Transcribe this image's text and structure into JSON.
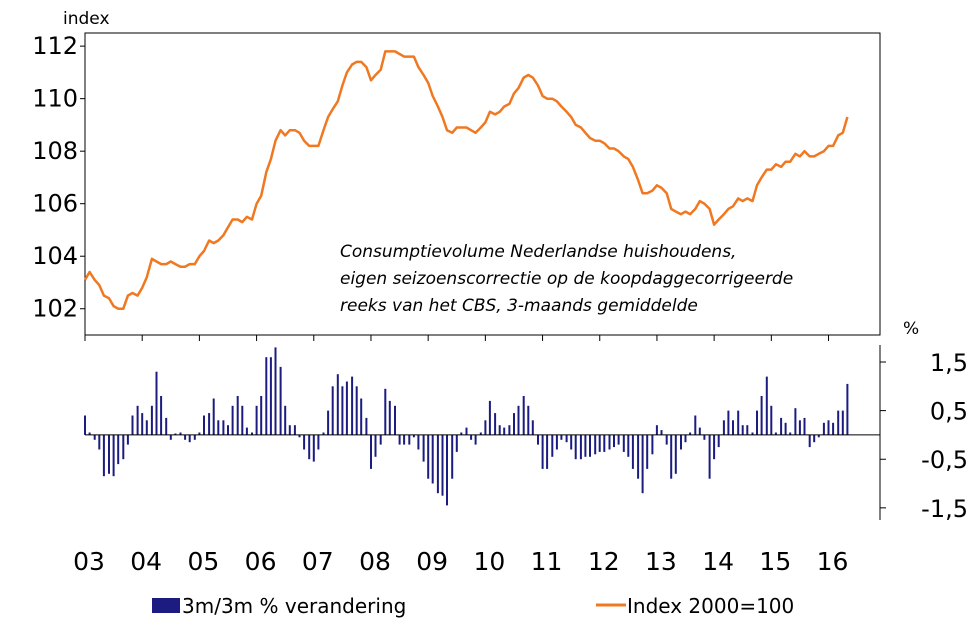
{
  "chart_data": {
    "type": "bar+line",
    "annotation": [
      "Consumptievolume Nederlandse huishoudens,",
      "eigen seizoenscorrectie op de koopdaggecorrigeerde",
      "reeks van het CBS, 3-maands gemiddelde"
    ],
    "top_panel": {
      "ylabel": "index",
      "ylim": [
        101,
        112.5
      ],
      "yticks": [
        "112",
        "110",
        "108",
        "106",
        "104",
        "102"
      ]
    },
    "bottom_panel": {
      "ylabel": "%",
      "ylim": [
        -1.75,
        1.85
      ],
      "yticks": [
        "1,5",
        "0,5",
        "-0,5",
        "-1,5"
      ]
    },
    "x_years": [
      "03",
      "04",
      "05",
      "06",
      "07",
      "08",
      "09",
      "10",
      "11",
      "12",
      "13",
      "14",
      "15",
      "16"
    ],
    "x_range": [
      2003.0,
      2016.9
    ],
    "line_series": {
      "name": "Index 2000=100",
      "color": "#f07820",
      "points": [
        [
          2003.0,
          103.1
        ],
        [
          2003.08,
          103.4
        ],
        [
          2003.17,
          103.1
        ],
        [
          2003.25,
          102.9
        ],
        [
          2003.33,
          102.5
        ],
        [
          2003.42,
          102.4
        ],
        [
          2003.5,
          102.1
        ],
        [
          2003.58,
          102.0
        ],
        [
          2003.67,
          102.0
        ],
        [
          2003.75,
          102.5
        ],
        [
          2003.83,
          102.6
        ],
        [
          2003.92,
          102.5
        ],
        [
          2004.0,
          102.8
        ],
        [
          2004.08,
          103.2
        ],
        [
          2004.17,
          103.9
        ],
        [
          2004.25,
          103.8
        ],
        [
          2004.33,
          103.7
        ],
        [
          2004.42,
          103.7
        ],
        [
          2004.5,
          103.8
        ],
        [
          2004.58,
          103.7
        ],
        [
          2004.67,
          103.6
        ],
        [
          2004.75,
          103.6
        ],
        [
          2004.83,
          103.7
        ],
        [
          2004.92,
          103.7
        ],
        [
          2005.0,
          104.0
        ],
        [
          2005.08,
          104.2
        ],
        [
          2005.17,
          104.6
        ],
        [
          2005.25,
          104.5
        ],
        [
          2005.33,
          104.6
        ],
        [
          2005.42,
          104.8
        ],
        [
          2005.5,
          105.1
        ],
        [
          2005.58,
          105.4
        ],
        [
          2005.67,
          105.4
        ],
        [
          2005.75,
          105.3
        ],
        [
          2005.83,
          105.5
        ],
        [
          2005.92,
          105.4
        ],
        [
          2006.0,
          106.0
        ],
        [
          2006.08,
          106.3
        ],
        [
          2006.17,
          107.2
        ],
        [
          2006.25,
          107.7
        ],
        [
          2006.33,
          108.4
        ],
        [
          2006.42,
          108.8
        ],
        [
          2006.5,
          108.6
        ],
        [
          2006.58,
          108.8
        ],
        [
          2006.67,
          108.8
        ],
        [
          2006.75,
          108.7
        ],
        [
          2006.83,
          108.4
        ],
        [
          2006.92,
          108.2
        ],
        [
          2007.0,
          108.2
        ],
        [
          2007.08,
          108.2
        ],
        [
          2007.17,
          108.8
        ],
        [
          2007.25,
          109.3
        ],
        [
          2007.33,
          109.6
        ],
        [
          2007.42,
          109.9
        ],
        [
          2007.5,
          110.5
        ],
        [
          2007.58,
          111.0
        ],
        [
          2007.67,
          111.3
        ],
        [
          2007.75,
          111.4
        ],
        [
          2007.83,
          111.4
        ],
        [
          2007.92,
          111.2
        ],
        [
          2008.0,
          110.7
        ],
        [
          2008.08,
          110.9
        ],
        [
          2008.17,
          111.1
        ],
        [
          2008.25,
          111.8
        ],
        [
          2008.33,
          111.8
        ],
        [
          2008.42,
          111.8
        ],
        [
          2008.5,
          111.7
        ],
        [
          2008.58,
          111.6
        ],
        [
          2008.67,
          111.6
        ],
        [
          2008.75,
          111.6
        ],
        [
          2008.83,
          111.2
        ],
        [
          2008.92,
          110.9
        ],
        [
          2009.0,
          110.6
        ],
        [
          2009.08,
          110.1
        ],
        [
          2009.17,
          109.7
        ],
        [
          2009.25,
          109.3
        ],
        [
          2009.33,
          108.8
        ],
        [
          2009.42,
          108.7
        ],
        [
          2009.5,
          108.9
        ],
        [
          2009.58,
          108.9
        ],
        [
          2009.67,
          108.9
        ],
        [
          2009.75,
          108.8
        ],
        [
          2009.83,
          108.7
        ],
        [
          2009.92,
          108.9
        ],
        [
          2010.0,
          109.1
        ],
        [
          2010.08,
          109.5
        ],
        [
          2010.17,
          109.4
        ],
        [
          2010.25,
          109.5
        ],
        [
          2010.33,
          109.7
        ],
        [
          2010.42,
          109.8
        ],
        [
          2010.5,
          110.2
        ],
        [
          2010.58,
          110.4
        ],
        [
          2010.67,
          110.8
        ],
        [
          2010.75,
          110.9
        ],
        [
          2010.83,
          110.8
        ],
        [
          2010.92,
          110.5
        ],
        [
          2011.0,
          110.1
        ],
        [
          2011.08,
          110.0
        ],
        [
          2011.17,
          110.0
        ],
        [
          2011.25,
          109.9
        ],
        [
          2011.33,
          109.7
        ],
        [
          2011.42,
          109.5
        ],
        [
          2011.5,
          109.3
        ],
        [
          2011.58,
          109.0
        ],
        [
          2011.67,
          108.9
        ],
        [
          2011.75,
          108.7
        ],
        [
          2011.83,
          108.5
        ],
        [
          2011.92,
          108.4
        ],
        [
          2012.0,
          108.4
        ],
        [
          2012.08,
          108.3
        ],
        [
          2012.17,
          108.1
        ],
        [
          2012.25,
          108.1
        ],
        [
          2012.33,
          108.0
        ],
        [
          2012.42,
          107.8
        ],
        [
          2012.5,
          107.7
        ],
        [
          2012.58,
          107.4
        ],
        [
          2012.67,
          106.9
        ],
        [
          2012.75,
          106.4
        ],
        [
          2012.83,
          106.4
        ],
        [
          2012.92,
          106.5
        ],
        [
          2013.0,
          106.7
        ],
        [
          2013.08,
          106.6
        ],
        [
          2013.17,
          106.4
        ],
        [
          2013.25,
          105.8
        ],
        [
          2013.33,
          105.7
        ],
        [
          2013.42,
          105.6
        ],
        [
          2013.5,
          105.7
        ],
        [
          2013.58,
          105.6
        ],
        [
          2013.67,
          105.8
        ],
        [
          2013.75,
          106.1
        ],
        [
          2013.83,
          106.0
        ],
        [
          2013.92,
          105.8
        ],
        [
          2014.0,
          105.2
        ],
        [
          2014.08,
          105.4
        ],
        [
          2014.17,
          105.6
        ],
        [
          2014.25,
          105.8
        ],
        [
          2014.33,
          105.9
        ],
        [
          2014.42,
          106.2
        ],
        [
          2014.5,
          106.1
        ],
        [
          2014.58,
          106.2
        ],
        [
          2014.67,
          106.1
        ],
        [
          2014.75,
          106.7
        ],
        [
          2014.83,
          107.0
        ],
        [
          2014.92,
          107.3
        ],
        [
          2015.0,
          107.3
        ],
        [
          2015.08,
          107.5
        ],
        [
          2015.17,
          107.4
        ],
        [
          2015.25,
          107.6
        ],
        [
          2015.33,
          107.6
        ],
        [
          2015.42,
          107.9
        ],
        [
          2015.5,
          107.8
        ],
        [
          2015.58,
          108.0
        ],
        [
          2015.67,
          107.8
        ],
        [
          2015.75,
          107.8
        ],
        [
          2015.83,
          107.9
        ],
        [
          2015.92,
          108.0
        ],
        [
          2016.0,
          108.2
        ],
        [
          2016.08,
          108.2
        ],
        [
          2016.17,
          108.6
        ],
        [
          2016.25,
          108.7
        ],
        [
          2016.33,
          109.3
        ]
      ]
    },
    "bar_series": {
      "name": "3m/3m % verandering",
      "color": "#1c1c80",
      "points": [
        [
          2003.0,
          0.4
        ],
        [
          2003.08,
          0.05
        ],
        [
          2003.17,
          -0.1
        ],
        [
          2003.25,
          -0.3
        ],
        [
          2003.33,
          -0.85
        ],
        [
          2003.42,
          -0.8
        ],
        [
          2003.5,
          -0.85
        ],
        [
          2003.58,
          -0.6
        ],
        [
          2003.67,
          -0.5
        ],
        [
          2003.75,
          -0.2
        ],
        [
          2003.83,
          0.4
        ],
        [
          2003.92,
          0.6
        ],
        [
          2004.0,
          0.45
        ],
        [
          2004.08,
          0.3
        ],
        [
          2004.17,
          0.6
        ],
        [
          2004.25,
          1.3
        ],
        [
          2004.33,
          0.8
        ],
        [
          2004.42,
          0.35
        ],
        [
          2004.5,
          -0.1
        ],
        [
          2004.58,
          0.03
        ],
        [
          2004.67,
          0.05
        ],
        [
          2004.75,
          -0.1
        ],
        [
          2004.83,
          -0.15
        ],
        [
          2004.92,
          -0.1
        ],
        [
          2005.0,
          0.05
        ],
        [
          2005.08,
          0.4
        ],
        [
          2005.17,
          0.45
        ],
        [
          2005.25,
          0.75
        ],
        [
          2005.33,
          0.3
        ],
        [
          2005.42,
          0.3
        ],
        [
          2005.5,
          0.2
        ],
        [
          2005.58,
          0.6
        ],
        [
          2005.67,
          0.8
        ],
        [
          2005.75,
          0.6
        ],
        [
          2005.83,
          0.15
        ],
        [
          2005.92,
          0.05
        ],
        [
          2006.0,
          0.6
        ],
        [
          2006.08,
          0.8
        ],
        [
          2006.17,
          1.6
        ],
        [
          2006.25,
          1.6
        ],
        [
          2006.33,
          1.8
        ],
        [
          2006.42,
          1.4
        ],
        [
          2006.5,
          0.6
        ],
        [
          2006.58,
          0.2
        ],
        [
          2006.67,
          0.2
        ],
        [
          2006.75,
          -0.05
        ],
        [
          2006.83,
          -0.3
        ],
        [
          2006.92,
          -0.5
        ],
        [
          2007.0,
          -0.55
        ],
        [
          2007.08,
          -0.3
        ],
        [
          2007.17,
          0.05
        ],
        [
          2007.25,
          0.5
        ],
        [
          2007.33,
          1.0
        ],
        [
          2007.42,
          1.25
        ],
        [
          2007.5,
          1.0
        ],
        [
          2007.58,
          1.1
        ],
        [
          2007.67,
          1.2
        ],
        [
          2007.75,
          1.0
        ],
        [
          2007.83,
          0.75
        ],
        [
          2007.92,
          0.35
        ],
        [
          2008.0,
          -0.7
        ],
        [
          2008.08,
          -0.45
        ],
        [
          2008.17,
          -0.2
        ],
        [
          2008.25,
          0.95
        ],
        [
          2008.33,
          0.7
        ],
        [
          2008.42,
          0.6
        ],
        [
          2008.5,
          -0.2
        ],
        [
          2008.58,
          -0.2
        ],
        [
          2008.67,
          -0.2
        ],
        [
          2008.75,
          -0.05
        ],
        [
          2008.83,
          -0.3
        ],
        [
          2008.92,
          -0.55
        ],
        [
          2009.0,
          -0.9
        ],
        [
          2009.08,
          -1.0
        ],
        [
          2009.17,
          -1.2
        ],
        [
          2009.25,
          -1.25
        ],
        [
          2009.33,
          -1.45
        ],
        [
          2009.42,
          -0.9
        ],
        [
          2009.5,
          -0.35
        ],
        [
          2009.58,
          0.05
        ],
        [
          2009.67,
          0.15
        ],
        [
          2009.75,
          -0.1
        ],
        [
          2009.83,
          -0.2
        ],
        [
          2009.92,
          0.05
        ],
        [
          2010.0,
          0.3
        ],
        [
          2010.08,
          0.7
        ],
        [
          2010.17,
          0.45
        ],
        [
          2010.25,
          0.2
        ],
        [
          2010.33,
          0.15
        ],
        [
          2010.42,
          0.2
        ],
        [
          2010.5,
          0.45
        ],
        [
          2010.58,
          0.6
        ],
        [
          2010.67,
          0.8
        ],
        [
          2010.75,
          0.6
        ],
        [
          2010.83,
          0.3
        ],
        [
          2010.92,
          -0.2
        ],
        [
          2011.0,
          -0.7
        ],
        [
          2011.08,
          -0.7
        ],
        [
          2011.17,
          -0.45
        ],
        [
          2011.25,
          -0.3
        ],
        [
          2011.33,
          -0.1
        ],
        [
          2011.42,
          -0.15
        ],
        [
          2011.5,
          -0.3
        ],
        [
          2011.58,
          -0.5
        ],
        [
          2011.67,
          -0.5
        ],
        [
          2011.75,
          -0.45
        ],
        [
          2011.83,
          -0.45
        ],
        [
          2011.92,
          -0.4
        ],
        [
          2012.0,
          -0.35
        ],
        [
          2012.08,
          -0.35
        ],
        [
          2012.17,
          -0.3
        ],
        [
          2012.25,
          -0.25
        ],
        [
          2012.33,
          -0.2
        ],
        [
          2012.42,
          -0.35
        ],
        [
          2012.5,
          -0.45
        ],
        [
          2012.58,
          -0.7
        ],
        [
          2012.67,
          -0.9
        ],
        [
          2012.75,
          -1.2
        ],
        [
          2012.83,
          -0.7
        ],
        [
          2012.92,
          -0.4
        ],
        [
          2013.0,
          0.2
        ],
        [
          2013.08,
          0.1
        ],
        [
          2013.17,
          -0.2
        ],
        [
          2013.25,
          -0.9
        ],
        [
          2013.33,
          -0.8
        ],
        [
          2013.42,
          -0.3
        ],
        [
          2013.5,
          -0.15
        ],
        [
          2013.58,
          0.05
        ],
        [
          2013.67,
          0.4
        ],
        [
          2013.75,
          0.15
        ],
        [
          2013.83,
          -0.1
        ],
        [
          2013.92,
          -0.9
        ],
        [
          2014.0,
          -0.5
        ],
        [
          2014.08,
          -0.25
        ],
        [
          2014.17,
          0.3
        ],
        [
          2014.25,
          0.5
        ],
        [
          2014.33,
          0.3
        ],
        [
          2014.42,
          0.5
        ],
        [
          2014.5,
          0.2
        ],
        [
          2014.58,
          0.2
        ],
        [
          2014.67,
          0.05
        ],
        [
          2014.75,
          0.5
        ],
        [
          2014.83,
          0.8
        ],
        [
          2014.92,
          1.2
        ],
        [
          2015.0,
          0.6
        ],
        [
          2015.08,
          0.05
        ],
        [
          2015.17,
          0.35
        ],
        [
          2015.25,
          0.25
        ],
        [
          2015.33,
          0.05
        ],
        [
          2015.42,
          0.55
        ],
        [
          2015.5,
          0.3
        ],
        [
          2015.58,
          0.35
        ],
        [
          2015.67,
          -0.25
        ],
        [
          2015.75,
          -0.15
        ],
        [
          2015.83,
          -0.05
        ],
        [
          2015.92,
          0.25
        ],
        [
          2016.0,
          0.3
        ],
        [
          2016.08,
          0.25
        ],
        [
          2016.17,
          0.5
        ],
        [
          2016.25,
          0.5
        ],
        [
          2016.33,
          1.05
        ]
      ]
    },
    "legend": {
      "bar_label": "3m/3m % verandering",
      "line_label": "Index 2000=100",
      "placement": "bottom"
    }
  }
}
